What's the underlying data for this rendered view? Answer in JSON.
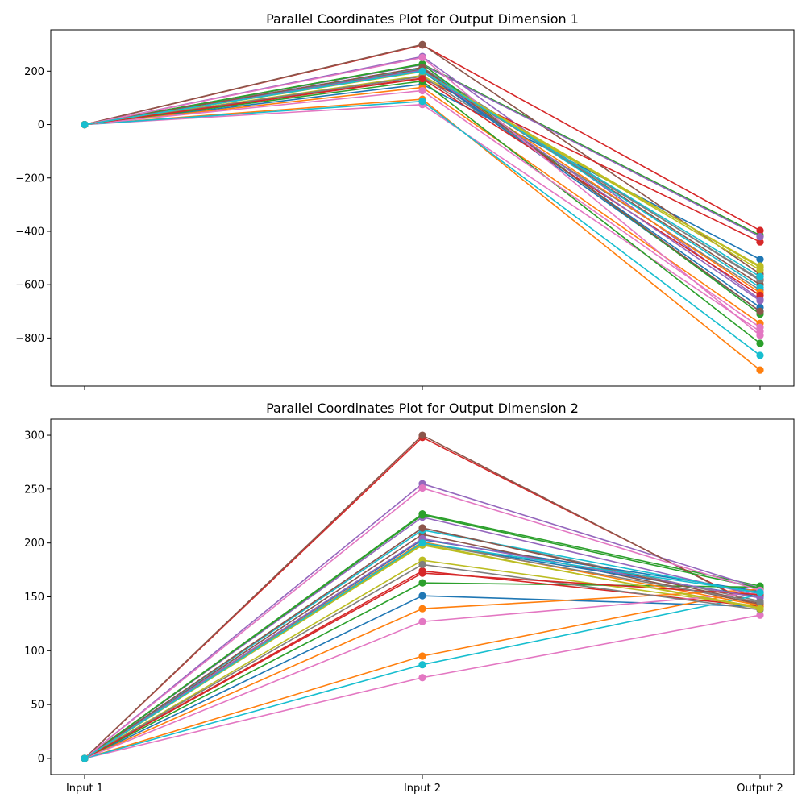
{
  "chart_data": [
    {
      "type": "line",
      "title": "Parallel Coordinates Plot for Output Dimension 1",
      "categories": [
        "",
        "",
        ""
      ],
      "ylim": [
        -980,
        355
      ],
      "yticks": [
        -800,
        -600,
        -400,
        -200,
        0,
        200
      ],
      "ytick_labels": [
        "−800",
        "−600",
        "−400",
        "−200",
        "0",
        "200"
      ],
      "grid": false,
      "series": [
        {
          "color": "#1f77b4",
          "values": [
            0,
            151,
            -505
          ]
        },
        {
          "color": "#ff7f0e",
          "values": [
            0,
            95,
            -920
          ]
        },
        {
          "color": "#2ca02c",
          "values": [
            0,
            227,
            -415
          ]
        },
        {
          "color": "#d62728",
          "values": [
            0,
            298,
            -397
          ]
        },
        {
          "color": "#9467bd",
          "values": [
            0,
            255,
            -655
          ]
        },
        {
          "color": "#8c564b",
          "values": [
            0,
            300,
            -560
          ]
        },
        {
          "color": "#e377c2",
          "values": [
            0,
            75,
            -775
          ]
        },
        {
          "color": "#7f7f7f",
          "values": [
            0,
            214,
            -585
          ]
        },
        {
          "color": "#bcbd22",
          "values": [
            0,
            184,
            -530
          ]
        },
        {
          "color": "#17becf",
          "values": [
            0,
            87,
            -865
          ]
        },
        {
          "color": "#1f77b4",
          "values": [
            0,
            203,
            -685
          ]
        },
        {
          "color": "#ff7f0e",
          "values": [
            0,
            139,
            -745
          ]
        },
        {
          "color": "#2ca02c",
          "values": [
            0,
            163,
            -820
          ]
        },
        {
          "color": "#d62728",
          "values": [
            0,
            174,
            -440
          ]
        },
        {
          "color": "#9467bd",
          "values": [
            0,
            224,
            -420
          ]
        },
        {
          "color": "#8c564b",
          "values": [
            0,
            208,
            -600
          ]
        },
        {
          "color": "#e377c2",
          "values": [
            0,
            127,
            -760
          ]
        },
        {
          "color": "#7f7f7f",
          "values": [
            0,
            180,
            -620
          ]
        },
        {
          "color": "#bcbd22",
          "values": [
            0,
            198,
            -545
          ]
        },
        {
          "color": "#17becf",
          "values": [
            0,
            212,
            -610
          ]
        },
        {
          "color": "#1f77b4",
          "values": [
            0,
            200,
            -700
          ]
        },
        {
          "color": "#ff7f0e",
          "values": [
            0,
            201,
            -630
          ]
        },
        {
          "color": "#2ca02c",
          "values": [
            0,
            226,
            -710
          ]
        },
        {
          "color": "#d62728",
          "values": [
            0,
            172,
            -640
          ]
        },
        {
          "color": "#9467bd",
          "values": [
            0,
            204,
            -660
          ]
        },
        {
          "color": "#8c564b",
          "values": [
            0,
            214,
            -700
          ]
        },
        {
          "color": "#e377c2",
          "values": [
            0,
            251,
            -790
          ]
        },
        {
          "color": "#7f7f7f",
          "values": [
            0,
            200,
            -580
          ]
        },
        {
          "color": "#bcbd22",
          "values": [
            0,
            199,
            -535
          ]
        },
        {
          "color": "#17becf",
          "values": [
            0,
            200,
            -570
          ]
        }
      ]
    },
    {
      "type": "line",
      "title": "Parallel Coordinates Plot for Output Dimension 2",
      "categories": [
        "Input 1",
        "Input 2",
        "Output 2"
      ],
      "ylim": [
        -15,
        315
      ],
      "yticks": [
        0,
        50,
        100,
        150,
        200,
        250,
        300
      ],
      "ytick_labels": [
        "0",
        "50",
        "100",
        "150",
        "200",
        "250",
        "300"
      ],
      "grid": false,
      "series": [
        {
          "color": "#1f77b4",
          "values": [
            0,
            151,
            141
          ]
        },
        {
          "color": "#ff7f0e",
          "values": [
            0,
            95,
            157
          ]
        },
        {
          "color": "#2ca02c",
          "values": [
            0,
            227,
            160
          ]
        },
        {
          "color": "#d62728",
          "values": [
            0,
            298,
            140
          ]
        },
        {
          "color": "#9467bd",
          "values": [
            0,
            255,
            158
          ]
        },
        {
          "color": "#8c564b",
          "values": [
            0,
            300,
            139
          ]
        },
        {
          "color": "#e377c2",
          "values": [
            0,
            75,
            133
          ]
        },
        {
          "color": "#7f7f7f",
          "values": [
            0,
            214,
            146
          ]
        },
        {
          "color": "#bcbd22",
          "values": [
            0,
            184,
            141
          ]
        },
        {
          "color": "#17becf",
          "values": [
            0,
            87,
            152
          ]
        },
        {
          "color": "#1f77b4",
          "values": [
            0,
            203,
            155
          ]
        },
        {
          "color": "#ff7f0e",
          "values": [
            0,
            139,
            157
          ]
        },
        {
          "color": "#2ca02c",
          "values": [
            0,
            163,
            159
          ]
        },
        {
          "color": "#d62728",
          "values": [
            0,
            174,
            141
          ]
        },
        {
          "color": "#9467bd",
          "values": [
            0,
            224,
            151
          ]
        },
        {
          "color": "#8c564b",
          "values": [
            0,
            208,
            143
          ]
        },
        {
          "color": "#e377c2",
          "values": [
            0,
            127,
            154
          ]
        },
        {
          "color": "#7f7f7f",
          "values": [
            0,
            180,
            138
          ]
        },
        {
          "color": "#bcbd22",
          "values": [
            0,
            198,
            140
          ]
        },
        {
          "color": "#17becf",
          "values": [
            0,
            212,
            153
          ]
        },
        {
          "color": "#1f77b4",
          "values": [
            0,
            200,
            150
          ]
        },
        {
          "color": "#ff7f0e",
          "values": [
            0,
            201,
            142
          ]
        },
        {
          "color": "#2ca02c",
          "values": [
            0,
            226,
            158
          ]
        },
        {
          "color": "#d62728",
          "values": [
            0,
            172,
            152
          ]
        },
        {
          "color": "#9467bd",
          "values": [
            0,
            204,
            149
          ]
        },
        {
          "color": "#8c564b",
          "values": [
            0,
            214,
            144
          ]
        },
        {
          "color": "#e377c2",
          "values": [
            0,
            251,
            156
          ]
        },
        {
          "color": "#7f7f7f",
          "values": [
            0,
            200,
            145
          ]
        },
        {
          "color": "#bcbd22",
          "values": [
            0,
            199,
            139
          ]
        },
        {
          "color": "#17becf",
          "values": [
            0,
            200,
            154
          ]
        }
      ]
    }
  ]
}
